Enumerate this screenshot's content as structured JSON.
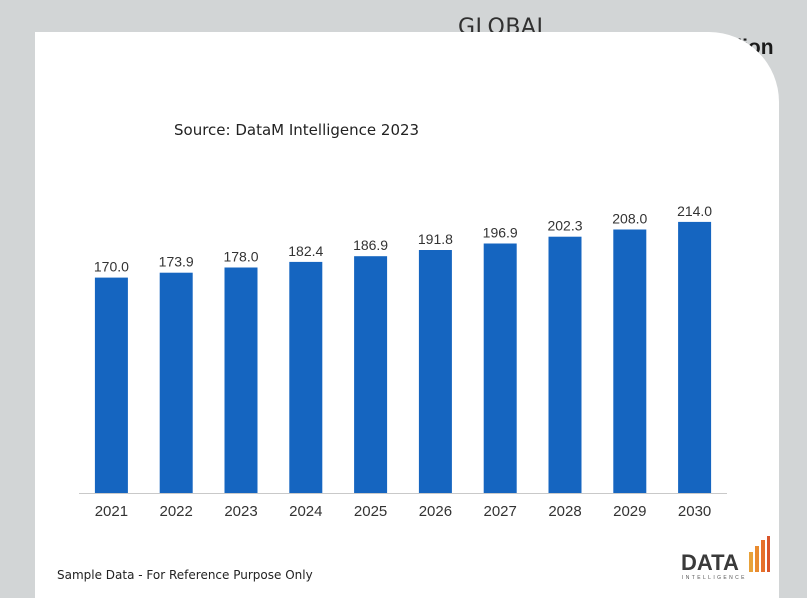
{
  "header": {
    "market_label": "GLOBAL MARKET",
    "unit_label": "In USD Million"
  },
  "source": "Source: DataM Intelligence 2023",
  "footnote": "Sample Data - For Reference Purpose Only",
  "logo": {
    "word": "DATA",
    "tagline": "INTELLIGENCE"
  },
  "colors": {
    "bar": "#1565c0",
    "background": "#d2d5d6",
    "panel": "#ffffff"
  },
  "chart_data": {
    "type": "bar",
    "categories": [
      "2021",
      "2022",
      "2023",
      "2024",
      "2025",
      "2026",
      "2027",
      "2028",
      "2029",
      "2030"
    ],
    "values": [
      170.0,
      173.9,
      178.0,
      182.4,
      186.9,
      191.8,
      196.9,
      202.3,
      208.0,
      214.0
    ],
    "value_labels": [
      "170.0",
      "173.9",
      "178.0",
      "182.4",
      "186.9",
      "191.8",
      "196.9",
      "202.3",
      "208.0",
      "214.0"
    ],
    "ylim": [
      0,
      221
    ],
    "grid": false,
    "legend": "none"
  }
}
